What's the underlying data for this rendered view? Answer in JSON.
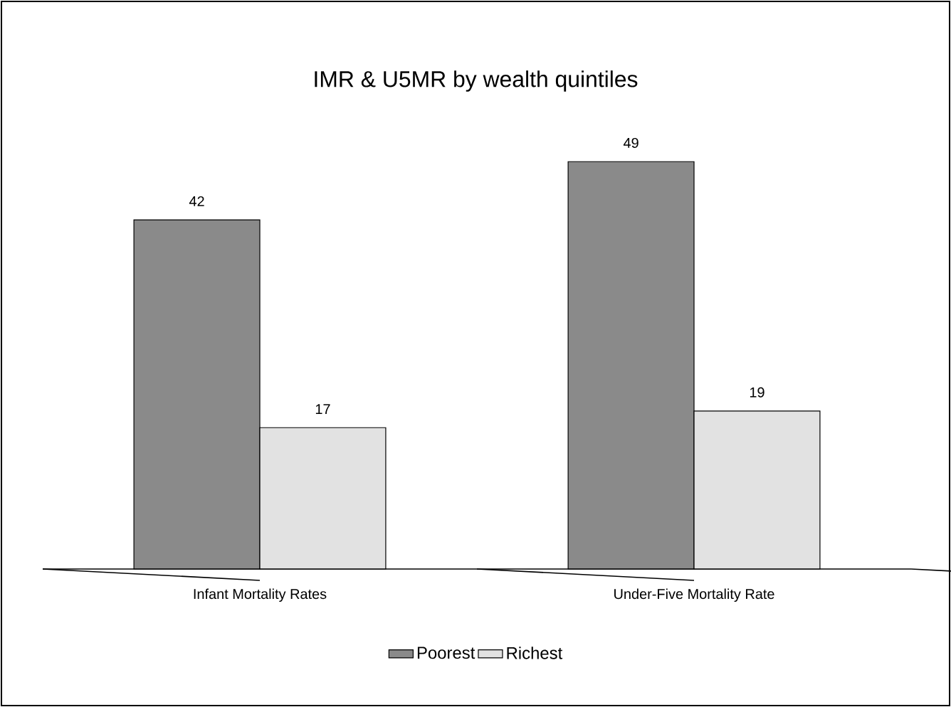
{
  "chart_data": {
    "type": "bar",
    "title": "IMR & U5MR by wealth quintiles",
    "categories": [
      "Infant Mortality Rates",
      "Under-Five Mortality Rate"
    ],
    "series": [
      {
        "name": "Poorest",
        "color": "#8a8a8a",
        "values": [
          42,
          49
        ]
      },
      {
        "name": "Richest",
        "color": "#e2e2e2",
        "values": [
          17,
          19
        ]
      }
    ],
    "tick_labels": "x",
    "data_labels": true,
    "legend": "bottom"
  }
}
